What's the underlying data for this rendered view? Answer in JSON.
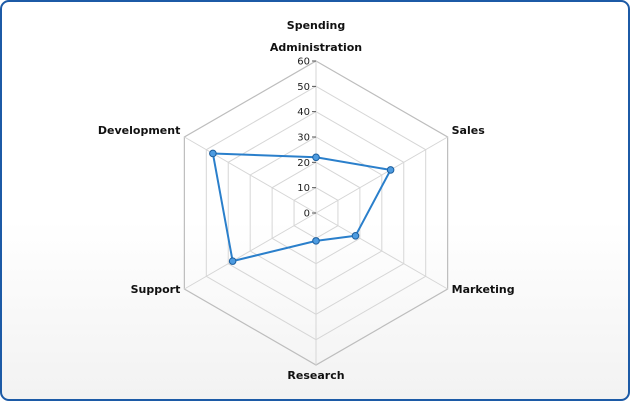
{
  "chart_data": {
    "type": "radar",
    "title": "Spending",
    "categories": [
      "Administration",
      "Sales",
      "Marketing",
      "Research",
      "Support",
      "Development"
    ],
    "series": [
      {
        "values": [
          22,
          34,
          18,
          11,
          38,
          47
        ]
      }
    ],
    "rlim": [
      0,
      60
    ],
    "ticks": [
      0,
      10,
      20,
      30,
      40,
      50,
      60
    ],
    "grid": true,
    "colors": {
      "series": "#2a7fcb",
      "marker": "#4d9be0",
      "grid": "#d6d6d6",
      "outer": "#bdbdbd",
      "border": "#1c5aa6"
    }
  }
}
